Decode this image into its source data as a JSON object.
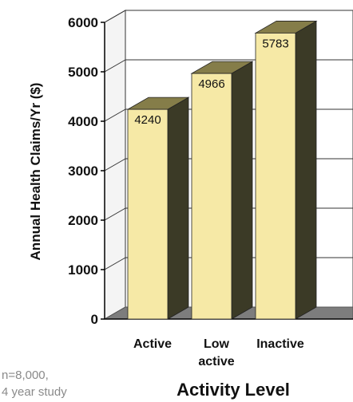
{
  "chart_data": {
    "type": "bar",
    "categories": [
      "Active",
      "Low\nactive",
      "Inactive"
    ],
    "values": [
      4240,
      4966,
      5783
    ],
    "data_labels": [
      "4240",
      "4966",
      "5783"
    ],
    "title": "",
    "xlabel": "Activity Level",
    "ylabel": "Annual Health Claims/Yr ($)",
    "ylim": [
      0,
      6000
    ],
    "yticks": [
      0,
      1000,
      2000,
      3000,
      4000,
      5000,
      6000
    ],
    "grid": true,
    "style": "3d",
    "colors": {
      "bar_front": "#f6e9a6",
      "bar_side": "#3b3a26",
      "bar_top": "#857d49",
      "wall": "#ffffff",
      "floor": "#7d7d7d",
      "grid": "#333333"
    }
  },
  "annotation": {
    "lines": [
      "n=8,000,",
      "4 year study"
    ]
  }
}
